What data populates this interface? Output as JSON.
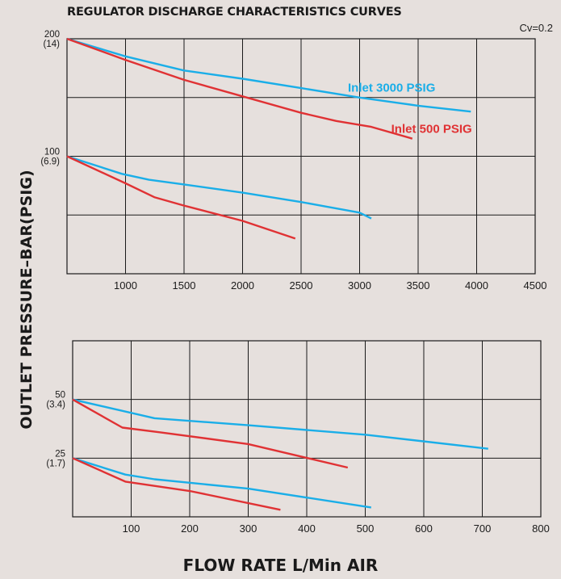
{
  "title": "REGULATOR DISCHARGE CHARACTERISTICS CURVES",
  "cv_note": "Cv=0.2",
  "ylabel": "OUTLET PRESSURE–BAR(PSIG)",
  "xlabel": "FLOW RATE  L/Min AIR",
  "colors": {
    "inlet_3000": "#1aaee8",
    "inlet_500": "#e03234",
    "grid": "#1a1a1a",
    "background": "#e6e0dd"
  },
  "chart_data": [
    {
      "type": "line",
      "xlim": [
        500,
        4500
      ],
      "ylim": [
        0,
        200
      ],
      "x_ticks": [
        {
          "value": 1000,
          "label": "1000"
        },
        {
          "value": 1500,
          "label": "1500"
        },
        {
          "value": 2000,
          "label": "2000"
        },
        {
          "value": 2500,
          "label": "2500"
        },
        {
          "value": 3000,
          "label": "3000"
        },
        {
          "value": 3500,
          "label": "3500"
        },
        {
          "value": 4000,
          "label": "4000"
        },
        {
          "value": 4500,
          "label": "4500"
        }
      ],
      "y_gridlines": [
        50,
        100,
        150,
        200
      ],
      "y_ticks": [
        {
          "value": 200,
          "label": "200",
          "sublabel": "(14)"
        },
        {
          "value": 100,
          "label": "100",
          "sublabel": "(6.9)"
        }
      ],
      "series": [
        {
          "name": "Inlet 3000 PSIG",
          "color_key": "inlet_3000",
          "label_at": [
            2900,
            155
          ],
          "x": [
            500,
            1000,
            1500,
            2000,
            2500,
            3000,
            3500,
            3950
          ],
          "y": [
            200,
            185,
            173,
            166,
            158,
            150,
            143,
            138
          ]
        },
        {
          "name": "Inlet 500 PSIG",
          "color_key": "inlet_500",
          "label_at": [
            3270,
            120
          ],
          "x": [
            500,
            1000,
            1500,
            2000,
            2500,
            2800,
            3100,
            3450
          ],
          "y": [
            200,
            182,
            165,
            151,
            137,
            130,
            125,
            115
          ]
        },
        {
          "name": "",
          "color_key": "inlet_3000",
          "x": [
            500,
            970,
            1200,
            1500,
            2000,
            2500,
            3000,
            3100
          ],
          "y": [
            100,
            85,
            80,
            76,
            69,
            61,
            52,
            47
          ]
        },
        {
          "name": "",
          "color_key": "inlet_500",
          "x": [
            500,
            1000,
            1250,
            1500,
            2000,
            2450
          ],
          "y": [
            100,
            77,
            65,
            58,
            45,
            30
          ]
        }
      ]
    },
    {
      "type": "line",
      "xlim": [
        0,
        800
      ],
      "ylim": [
        0,
        75
      ],
      "x_ticks": [
        {
          "value": 100,
          "label": "100"
        },
        {
          "value": 200,
          "label": "200"
        },
        {
          "value": 300,
          "label": "300"
        },
        {
          "value": 400,
          "label": "400"
        },
        {
          "value": 500,
          "label": "500"
        },
        {
          "value": 600,
          "label": "600"
        },
        {
          "value": 700,
          "label": "700"
        },
        {
          "value": 800,
          "label": "800"
        }
      ],
      "y_gridlines": [
        25,
        50,
        75
      ],
      "y_ticks": [
        {
          "value": 50,
          "label": "50",
          "sublabel": "(3.4)"
        },
        {
          "value": 25,
          "label": "25",
          "sublabel": "(1.7)"
        }
      ],
      "series": [
        {
          "name": "",
          "color_key": "inlet_3000",
          "x": [
            0,
            70,
            140,
            300,
            500,
            710
          ],
          "y": [
            50,
            46,
            42,
            39,
            35,
            29
          ]
        },
        {
          "name": "",
          "color_key": "inlet_500",
          "x": [
            0,
            85,
            150,
            300,
            470
          ],
          "y": [
            50,
            38,
            36,
            31,
            21
          ]
        },
        {
          "name": "",
          "color_key": "inlet_3000",
          "x": [
            0,
            90,
            140,
            300,
            510
          ],
          "y": [
            25,
            18,
            16,
            12,
            4
          ]
        },
        {
          "name": "",
          "color_key": "inlet_500",
          "x": [
            0,
            90,
            200,
            355
          ],
          "y": [
            25,
            15,
            11,
            3
          ]
        }
      ]
    }
  ]
}
